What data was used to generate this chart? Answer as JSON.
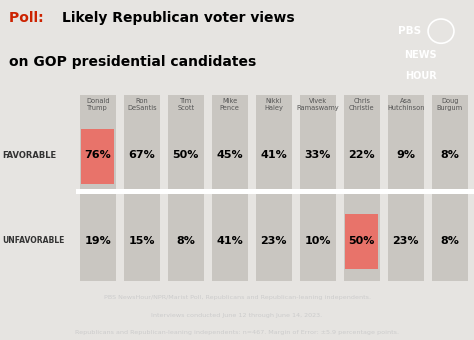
{
  "title_poll": "Poll:  ",
  "title_main_1": "Likely Republican voter views",
  "title_main_2": "on GOP presidential candidates",
  "candidates": [
    "Donald\nTrump",
    "Ron\nDeSantis",
    "Tim\nScott",
    "Mike\nPence",
    "Nikki\nHaley",
    "Vivek\nRamaswamy",
    "Chris\nChristie",
    "Asa\nHutchinson",
    "Doug\nBurgum"
  ],
  "favorable": [
    76,
    67,
    50,
    45,
    41,
    33,
    22,
    9,
    8
  ],
  "unfavorable": [
    19,
    15,
    8,
    41,
    23,
    10,
    50,
    23,
    8
  ],
  "favorable_highlight": [
    true,
    false,
    false,
    false,
    false,
    false,
    false,
    false,
    false
  ],
  "unfavorable_highlight": [
    false,
    false,
    false,
    false,
    false,
    false,
    true,
    false,
    false
  ],
  "bg_color": "#e6e4e1",
  "bar_color": "#c9c6c1",
  "highlight_color": "#e8736a",
  "text_color_red": "#cc2200",
  "footer_bg": "#2b3649",
  "footer_text_1": "PBS NewsHour/NPR/Marist Poll, Republicans and Republican-leaning independents.",
  "footer_text_2": "Interviews conducted June 12 through June 14, 2023.",
  "footer_text_3": "Republicans and Republican-leaning independents: n=467. Margin of Error: ±5.9 percentage points.",
  "pbs_bg": "#1c2b4a",
  "label_favorable": "FAVORABLE",
  "label_unfavorable": "UNFAVORABLE"
}
